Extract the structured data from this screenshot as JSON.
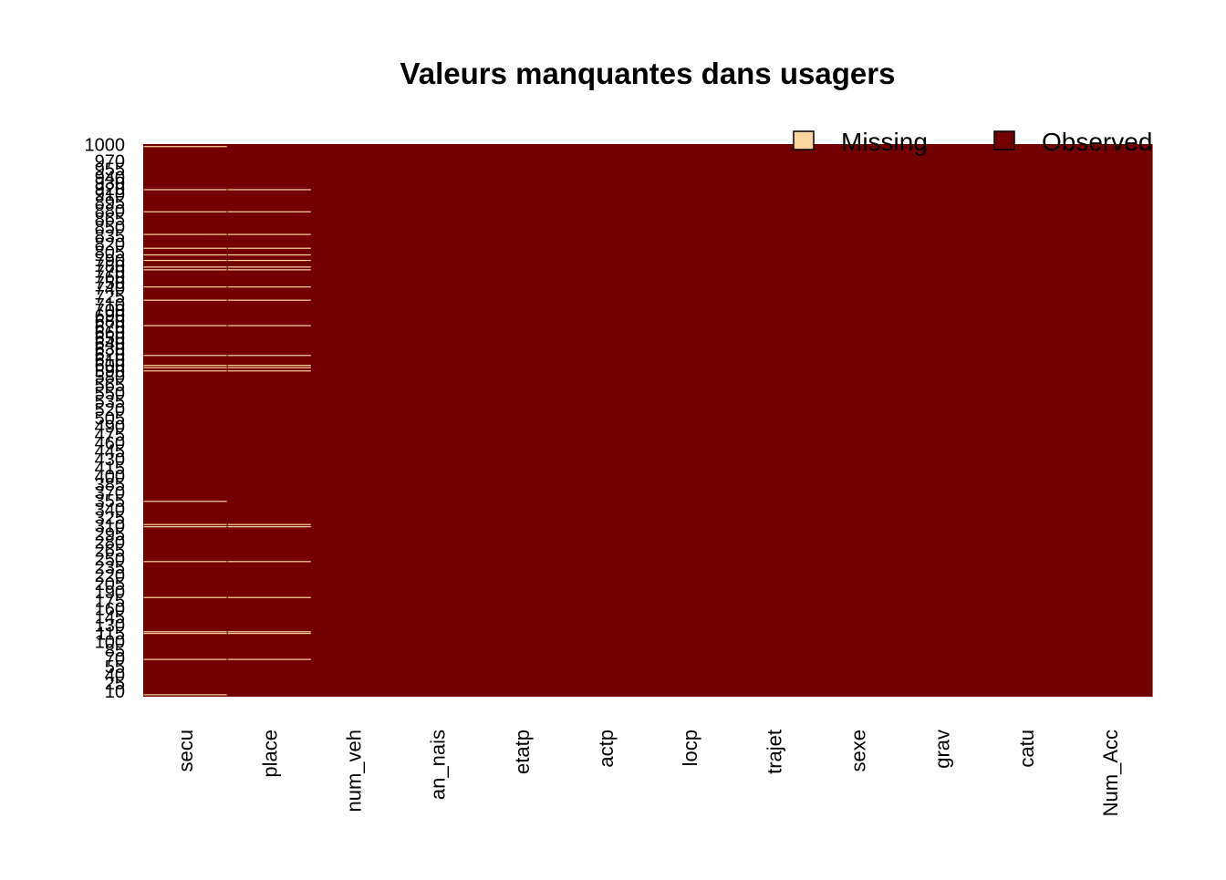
{
  "chart_data": {
    "type": "heatmap",
    "title": "Valeurs manquantes dans usagers",
    "xlabel": "",
    "ylabel": "",
    "columns": [
      "secu",
      "place",
      "num_veh",
      "an_nais",
      "etatp",
      "actp",
      "locp",
      "trajet",
      "sexe",
      "grav",
      "catu",
      "Num_Acc"
    ],
    "rows_range": [
      1,
      1000
    ],
    "y_tick_labels": [
      "1000",
      "970",
      "955",
      "940",
      "930",
      "920",
      "910",
      "895",
      "880",
      "865",
      "850",
      "835",
      "820",
      "805",
      "790",
      "780",
      "770",
      "760",
      "750",
      "740",
      "725",
      "710",
      "700",
      "690",
      "680",
      "670",
      "660",
      "650",
      "640",
      "630",
      "620",
      "610",
      "600",
      "590",
      "580",
      "565",
      "550",
      "535",
      "520",
      "505",
      "490",
      "475",
      "460",
      "445",
      "430",
      "415",
      "400",
      "385",
      "370",
      "355",
      "340",
      "325",
      "310",
      "295",
      "280",
      "265",
      "250",
      "235",
      "220",
      "205",
      "190",
      "175",
      "160",
      "145",
      "130",
      "115",
      "100",
      "85",
      "70",
      "55",
      "40",
      "25",
      "10"
    ],
    "missing_rows": {
      "secu": [
        4,
        68,
        115,
        118,
        180,
        245,
        308,
        312,
        354,
        590,
        596,
        600,
        618,
        672,
        718,
        742,
        773,
        778,
        790,
        800,
        812,
        837,
        878,
        918,
        996
      ],
      "place": [
        68,
        115,
        118,
        180,
        245,
        308,
        312,
        590,
        596,
        600,
        618,
        672,
        718,
        742,
        773,
        778,
        790,
        800,
        812,
        837,
        878,
        918
      ],
      "num_veh": [],
      "an_nais": [],
      "etatp": [],
      "actp": [],
      "locp": [],
      "trajet": [],
      "sexe": [],
      "grav": [],
      "catu": [],
      "Num_Acc": []
    },
    "legend": [
      {
        "label": "Missing",
        "color": "#FAD7A0"
      },
      {
        "label": "Observed",
        "color": "#730000"
      }
    ],
    "legend_position": "top-right"
  }
}
